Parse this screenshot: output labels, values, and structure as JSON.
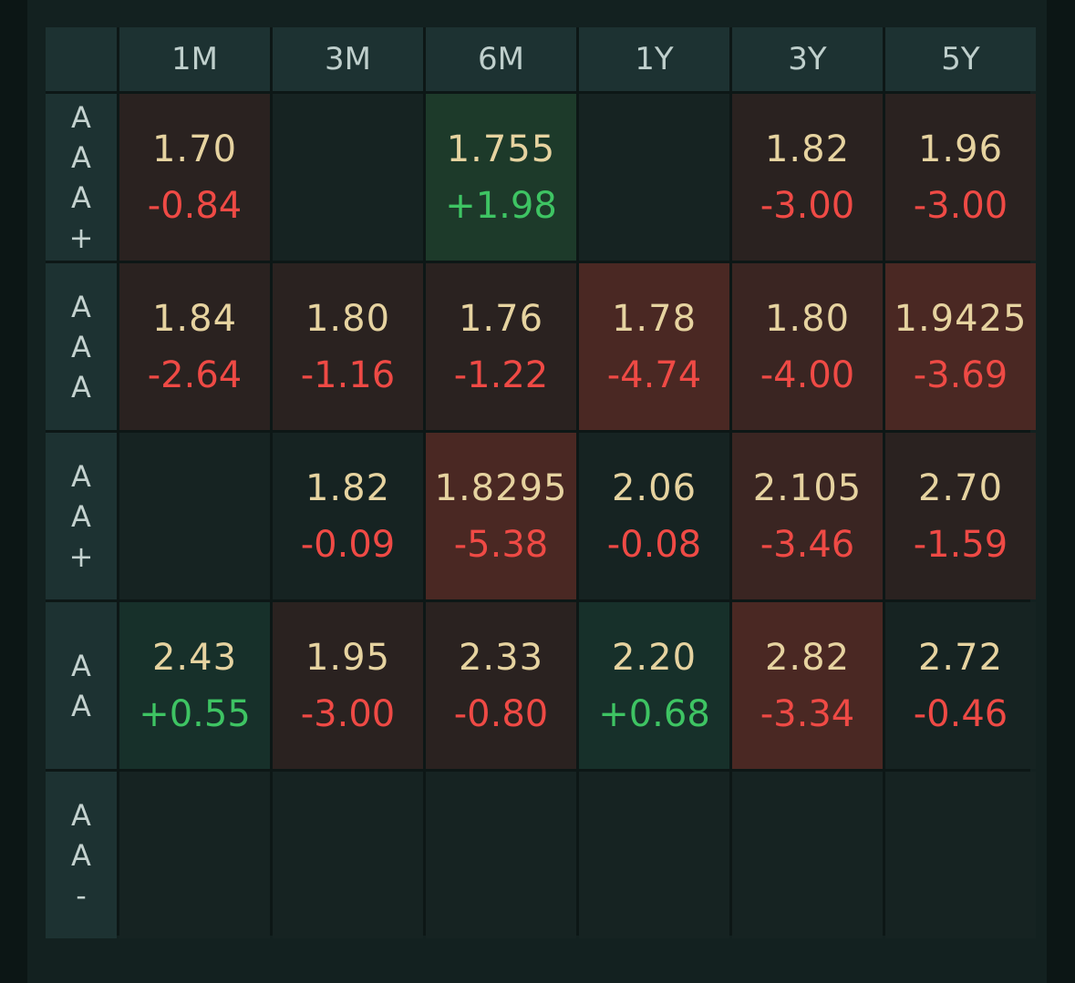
{
  "colors": {
    "yield": "#e6d3a0",
    "negative": "#ef4a45",
    "positive": "#3ec463",
    "header_bg": "#1d3232"
  },
  "columns": [
    "1M",
    "3M",
    "6M",
    "1Y",
    "3Y",
    "5Y"
  ],
  "rows": [
    {
      "label_chars": [
        "A",
        "A",
        "A",
        "+"
      ],
      "cells": [
        {
          "yield": "1.70",
          "change": "-0.84",
          "dir": "neg",
          "bg": "lightred"
        },
        {
          "yield": "",
          "change": "",
          "dir": "",
          "bg": "neutral"
        },
        {
          "yield": "1.755",
          "change": "+1.98",
          "dir": "pos",
          "bg": "green"
        },
        {
          "yield": "",
          "change": "",
          "dir": "",
          "bg": "neutral"
        },
        {
          "yield": "1.82",
          "change": "-3.00",
          "dir": "neg",
          "bg": "lightred"
        },
        {
          "yield": "1.96",
          "change": "-3.00",
          "dir": "neg",
          "bg": "lightred"
        }
      ]
    },
    {
      "label_chars": [
        "A",
        "A",
        "A"
      ],
      "cells": [
        {
          "yield": "1.84",
          "change": "-2.64",
          "dir": "neg",
          "bg": "lightred"
        },
        {
          "yield": "1.80",
          "change": "-1.16",
          "dir": "neg",
          "bg": "lightred"
        },
        {
          "yield": "1.76",
          "change": "-1.22",
          "dir": "neg",
          "bg": "lightred"
        },
        {
          "yield": "1.78",
          "change": "-4.74",
          "dir": "neg",
          "bg": "strongred"
        },
        {
          "yield": "1.80",
          "change": "-4.00",
          "dir": "neg",
          "bg": "midred"
        },
        {
          "yield": "1.9425",
          "change": "-3.69",
          "dir": "neg",
          "bg": "strongred"
        }
      ]
    },
    {
      "label_chars": [
        "A",
        "A",
        "+"
      ],
      "cells": [
        {
          "yield": "",
          "change": "",
          "dir": "",
          "bg": "neutral"
        },
        {
          "yield": "1.82",
          "change": "-0.09",
          "dir": "neg",
          "bg": "neutral"
        },
        {
          "yield": "1.8295",
          "change": "-5.38",
          "dir": "neg",
          "bg": "strongred"
        },
        {
          "yield": "2.06",
          "change": "-0.08",
          "dir": "neg",
          "bg": "neutral"
        },
        {
          "yield": "2.105",
          "change": "-3.46",
          "dir": "neg",
          "bg": "midred"
        },
        {
          "yield": "2.70",
          "change": "-1.59",
          "dir": "neg",
          "bg": "lightred"
        }
      ]
    },
    {
      "label_chars": [
        "A",
        "A"
      ],
      "cells": [
        {
          "yield": "2.43",
          "change": "+0.55",
          "dir": "pos",
          "bg": "lightgreen"
        },
        {
          "yield": "1.95",
          "change": "-3.00",
          "dir": "neg",
          "bg": "lightred"
        },
        {
          "yield": "2.33",
          "change": "-0.80",
          "dir": "neg",
          "bg": "lightred"
        },
        {
          "yield": "2.20",
          "change": "+0.68",
          "dir": "pos",
          "bg": "lightgreen"
        },
        {
          "yield": "2.82",
          "change": "-3.34",
          "dir": "neg",
          "bg": "strongred"
        },
        {
          "yield": "2.72",
          "change": "-0.46",
          "dir": "neg",
          "bg": "neutral"
        }
      ]
    },
    {
      "label_chars": [
        "A",
        "A",
        "-"
      ],
      "cells": [
        {
          "yield": "",
          "change": "",
          "dir": "",
          "bg": "neutral"
        },
        {
          "yield": "",
          "change": "",
          "dir": "",
          "bg": "neutral"
        },
        {
          "yield": "",
          "change": "",
          "dir": "",
          "bg": "neutral"
        },
        {
          "yield": "",
          "change": "",
          "dir": "",
          "bg": "neutral"
        },
        {
          "yield": "",
          "change": "",
          "dir": "",
          "bg": "neutral"
        },
        {
          "yield": "",
          "change": "",
          "dir": "",
          "bg": "neutral"
        }
      ]
    }
  ]
}
